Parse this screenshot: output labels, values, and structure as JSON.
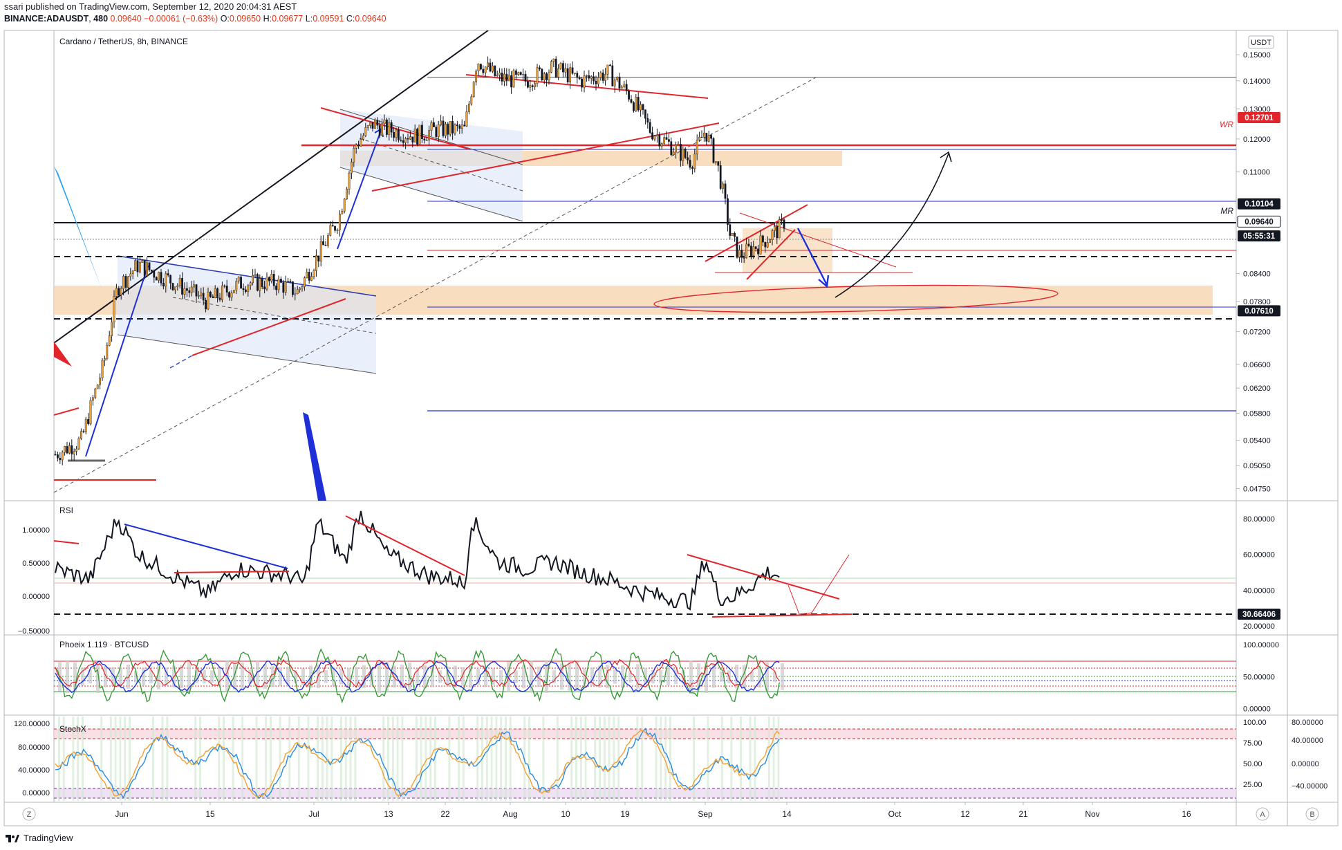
{
  "header": {
    "published_line": "ssari published on TradingView.com, September 12, 2020 20:04:31 AEST",
    "symbol": "BINANCE:ADAUSDT",
    "interval": "480",
    "last": "0.09640",
    "change": "−0.00061 (−0.63%)",
    "open_label": "O:",
    "open": "0.09650",
    "high_label": "H:",
    "high": "0.09677",
    "low_label": "L:",
    "low": "0.09591",
    "close_label": "C:",
    "close": "0.09640"
  },
  "footer": {
    "brand": "TradingView"
  },
  "corner_buttons": {
    "z": "Z",
    "a": "A",
    "b": "B"
  },
  "colors": {
    "up": "#f0a030",
    "down": "#131722",
    "red": "#e0252b",
    "blue": "#1e2fd8",
    "zone": "#f7d7b4",
    "blue_zone": "#dbe6f8",
    "label_red": "#e0252b"
  },
  "chart_data": [
    {
      "type": "candlestick",
      "title": "Cardano / TetherUS, 8h, BINANCE",
      "currency_label": "USDT",
      "y_scale": "log",
      "ylim": [
        0.046,
        0.16
      ],
      "y_ticks": [
        "0.15000",
        "0.14000",
        "0.13000",
        "0.12000",
        "0.11000",
        "0.08400",
        "0.07800",
        "0.07200",
        "0.06600",
        "0.06200",
        "0.05800",
        "0.05400",
        "0.05050",
        "0.04750"
      ],
      "price_labels": [
        {
          "text": "0.12701",
          "value": 0.12701,
          "style": "red"
        },
        {
          "text": "0.10104",
          "value": 0.10104,
          "style": "black"
        },
        {
          "text": "0.09640",
          "value": 0.0964,
          "style": "black-outline"
        },
        {
          "text": "05:55:31",
          "value": 0.0928,
          "style": "black"
        },
        {
          "text": "0.07610",
          "value": 0.0761,
          "style": "black"
        }
      ],
      "level_texts": [
        {
          "text": "WR",
          "value": 0.1247
        },
        {
          "text": "MR",
          "value": 0.0992
        }
      ],
      "x_ticks": [
        "Jun",
        "15",
        "Jul",
        "13",
        "22",
        "Aug",
        "10",
        "19",
        "Sep",
        "14",
        "Oct",
        "12",
        "21",
        "Nov",
        "16"
      ]
    },
    {
      "type": "line",
      "title": "RSI",
      "left_ticks": [
        "1.00000",
        "0.50000",
        "0.00000",
        "−0.50000"
      ],
      "right_ticks": [
        "80.00000",
        "60.00000",
        "40.00000",
        "20.00000"
      ],
      "current_label": "30.66406",
      "ylim": [
        15,
        90
      ]
    },
    {
      "type": "line",
      "title": "Phoeix 1.119 · BTCUSD",
      "right_ticks": [
        "100.00000",
        "50.00000",
        "0.00000"
      ],
      "ylim": [
        -10,
        115
      ]
    },
    {
      "type": "line",
      "title": "StochX",
      "left_ticks": [
        "120.00000",
        "80.00000",
        "40.00000",
        "0.00000"
      ],
      "right_ticks": [
        "100.00",
        "75.00",
        "50.00",
        "25.00"
      ],
      "far_right_ticks": [
        "80.00000",
        "40.00000",
        "0.00000",
        "−40.00000"
      ],
      "ylim": [
        -5,
        125
      ]
    }
  ]
}
